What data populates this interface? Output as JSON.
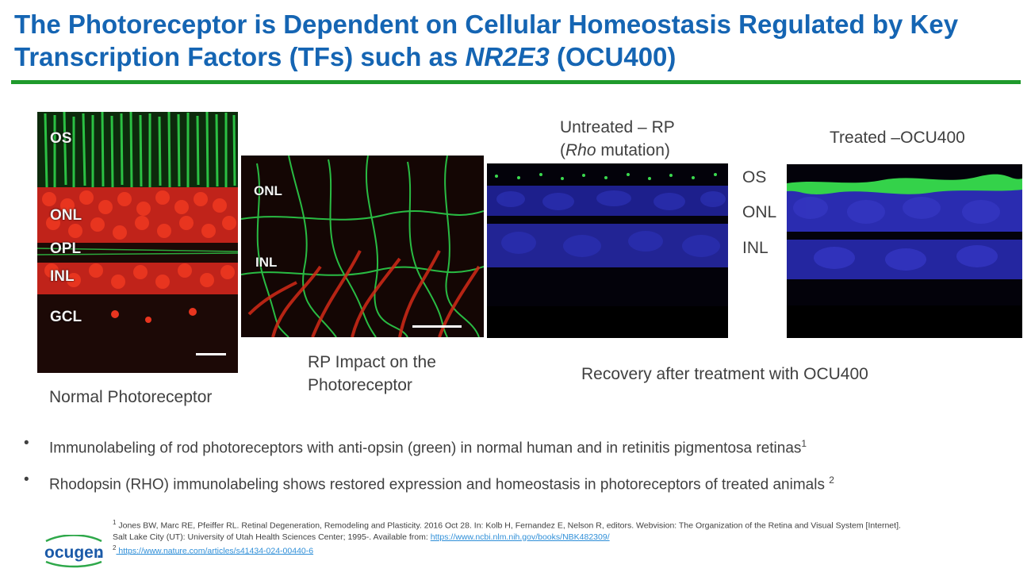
{
  "slide": {
    "title_part1": "The Photoreceptor is Dependent on Cellular Homeostasis Regulated by Key Transcription Factors (TFs) such as ",
    "title_italic": "NR2E3",
    "title_part2": " (OCU400)",
    "accent_color": "#1565b3",
    "rule_color": "#1f9a2c"
  },
  "panels": {
    "normal": {
      "labels": [
        "OS",
        "ONL",
        "OPL",
        "INL",
        "GCL"
      ],
      "caption": "Normal Photoreceptor"
    },
    "rp": {
      "labels": [
        "ONL",
        "INL"
      ],
      "caption_line1": "RP Impact on the",
      "caption_line2": "Photoreceptor"
    },
    "untreated": {
      "title_line1": "Untreated – RP",
      "title_line2_open": "(",
      "title_line2_italic": "Rho",
      "title_line2_rest": " mutation)"
    },
    "treated": {
      "title": "Treated –OCU400"
    },
    "layer_labels": [
      "OS",
      "ONL",
      "INL"
    ],
    "recovery_caption": "Recovery after treatment with OCU400"
  },
  "bullets": [
    {
      "text": "Immunolabeling of rod photoreceptors with anti-opsin (green) in normal human and in retinitis pigmentosa retinas",
      "sup": "1"
    },
    {
      "text": "Rhodopsin (RHO) immunolabeling shows restored expression and homeostasis in photoreceptors of treated animals ",
      "sup": "2"
    }
  ],
  "bullet_symbol": "•",
  "references": {
    "ref1_sup": "1",
    "ref1_text": " Jones BW, Marc RE, Pfeiffer RL. Retinal Degeneration, Remodeling and Plasticity. 2016 Oct 28. In: Kolb H, Fernandez E, Nelson R, editors. Webvision: The Organization of the Retina and Visual System [Internet]. Salt Lake City (UT): University of Utah Health Sciences Center; 1995-. Available from: ",
    "ref1_link": "https://www.ncbi.nlm.nih.gov/books/NBK482309/",
    "ref2_sup": "2",
    "ref2_link": " https://www.nature.com/articles/s41434-024-00440-6"
  },
  "logo": {
    "text": "ocugen",
    "mark": "."
  }
}
